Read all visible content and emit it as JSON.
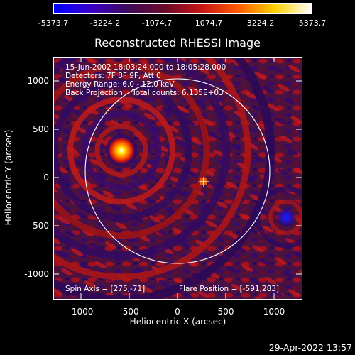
{
  "colorbar": {
    "labels": [
      "-5373.7",
      "-3224.2",
      "-1074.7",
      "1074.7",
      "3224.2",
      "5373.7"
    ],
    "colors": [
      "#0000ff",
      "#3a00c8",
      "#3d0a59",
      "#6a0a2a",
      "#c41414",
      "#ff5a00",
      "#ffd200",
      "#ffffff"
    ]
  },
  "plot": {
    "title": "Reconstructed RHESSI Image",
    "xlabel": "Heliocentric X (arcsec)",
    "ylabel": "Heliocentric Y (arcsec)",
    "x_ticks": [
      "-1000",
      "-500",
      "0",
      "500",
      "1000"
    ],
    "y_ticks": [
      "1000",
      "500",
      "0",
      "-500",
      "-1000"
    ],
    "info_lines": [
      "15-Jun-2002 18:03:24.000 to 18:05:28.000",
      "Detectors: 7F 8F 9F, Att 0",
      "Energy Range: 6.0 - 12.0 keV",
      "Back Projection    Total counts: 6.135E+03"
    ],
    "spin_axis": "Spin Axis = [275,-71]",
    "flare_position": "Flare Position = [-591,283]"
  },
  "timestamp": "29-Apr-2022 13:57"
}
